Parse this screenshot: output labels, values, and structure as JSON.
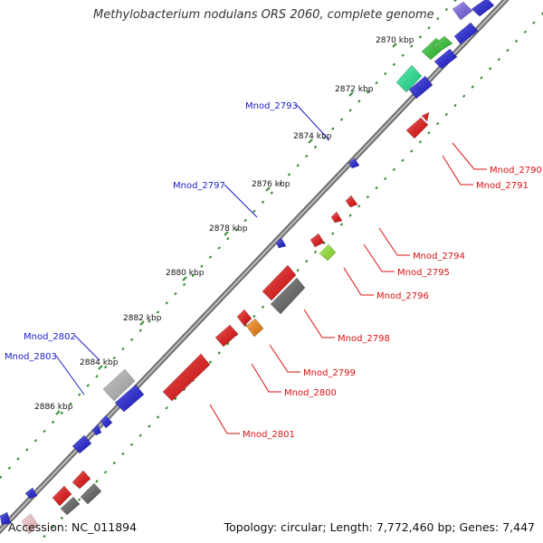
{
  "title": "Methylobacterium nodulans ORS 2060, complete genome",
  "footer": {
    "accession": "Accession: NC_011894",
    "stats": "Topology: circular; Length: 7,772,460 bp; Genes: 7,447"
  },
  "colors": {
    "backbone": "#888888",
    "dots": "#2e8b2e",
    "plus_label": "#1a1acc",
    "minus_label": "#dd1111"
  },
  "ticks": [
    "2870 kbp",
    "2872 kbp",
    "2874 kbp",
    "2876 kbp",
    "2878 kbp",
    "2880 kbp",
    "2882 kbp",
    "2884 kbp",
    "2886 kbp"
  ],
  "gene_labels": [
    {
      "text": "Mnod_2793",
      "strand": "plus"
    },
    {
      "text": "Mnod_2797",
      "strand": "plus"
    },
    {
      "text": "Mnod_2802",
      "strand": "plus"
    },
    {
      "text": "Mnod_2803",
      "strand": "plus"
    },
    {
      "text": "Mnod_2790",
      "strand": "minus"
    },
    {
      "text": "Mnod_2791",
      "strand": "minus"
    },
    {
      "text": "Mnod_2794",
      "strand": "minus"
    },
    {
      "text": "Mnod_2795",
      "strand": "minus"
    },
    {
      "text": "Mnod_2796",
      "strand": "minus"
    },
    {
      "text": "Mnod_2798",
      "strand": "minus"
    },
    {
      "text": "Mnod_2799",
      "strand": "minus"
    },
    {
      "text": "Mnod_2800",
      "strand": "minus"
    },
    {
      "text": "Mnod_2801",
      "strand": "minus"
    }
  ]
}
